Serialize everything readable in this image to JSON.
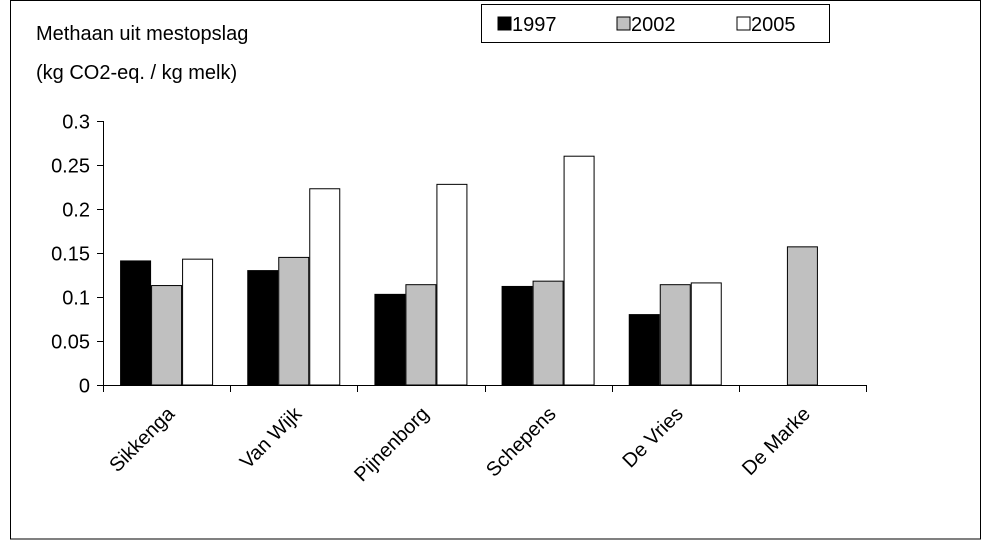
{
  "chart_data": {
    "type": "bar",
    "title_line1": "Methaan uit mestopslag",
    "title_line2": "(kg CO2-eq. / kg melk)",
    "categories": [
      "Sikkenga",
      "Van Wijk",
      "Pijnenborg",
      "Schepens",
      "De Vries",
      "De Marke"
    ],
    "series": [
      {
        "name": "1997",
        "color": "#000000",
        "values": [
          0.141,
          0.13,
          0.103,
          0.112,
          0.08,
          null
        ]
      },
      {
        "name": "2002",
        "color": "#c0c0c0",
        "values": [
          0.113,
          0.145,
          0.114,
          0.118,
          0.114,
          0.157
        ]
      },
      {
        "name": "2005",
        "color": "#ffffff",
        "values": [
          0.143,
          0.223,
          0.228,
          0.26,
          0.116,
          null
        ]
      }
    ],
    "yticks": [
      "0",
      "0.05",
      "0.1",
      "0.15",
      "0.2",
      "0.25",
      "0.3"
    ],
    "ylim": [
      0,
      0.3
    ],
    "grid": false,
    "legend_position": "top-right"
  }
}
